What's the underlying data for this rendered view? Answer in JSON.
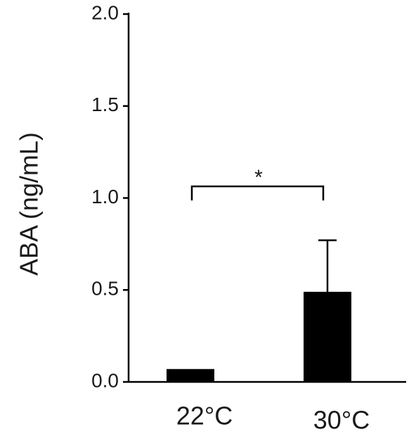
{
  "chart_data": {
    "type": "bar",
    "y_label": "ABA (ng/mL)",
    "categories": [
      "22°C",
      "30°C"
    ],
    "values": [
      0.07,
      0.49
    ],
    "errors": [
      null,
      0.28
    ],
    "color": "#000000",
    "ylim": [
      0,
      2
    ],
    "yticks": [
      {
        "value": 0,
        "label": "0.0"
      },
      {
        "value": 0.5,
        "label": "0.5"
      },
      {
        "value": 1,
        "label": "1.0"
      },
      {
        "value": 1.5,
        "label": "1.5"
      },
      {
        "value": 2,
        "label": "2.0"
      }
    ],
    "annotation": "*"
  }
}
